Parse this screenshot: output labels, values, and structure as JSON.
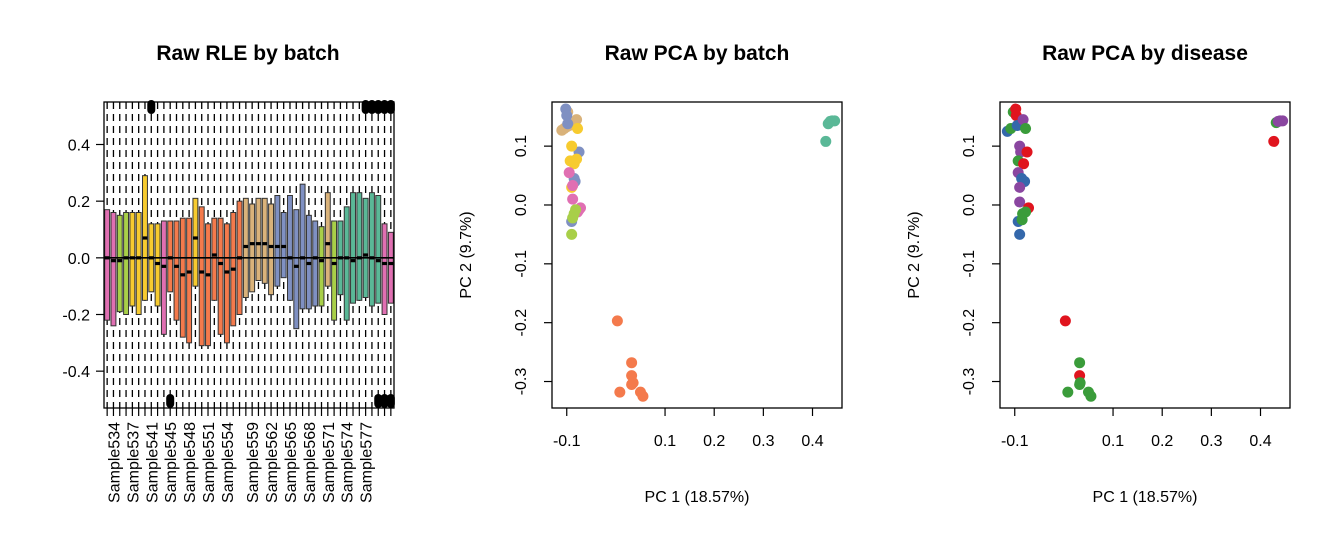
{
  "chart_data": [
    {
      "type": "boxplot",
      "title": "Raw RLE by batch",
      "ylim": [
        -0.53,
        0.55
      ],
      "yticks": [
        -0.4,
        -0.2,
        0.0,
        0.2,
        0.4
      ],
      "ytick_labels": [
        "-0.4",
        "-0.2",
        "0.0",
        "0.2",
        "0.4"
      ],
      "reference_line": 0,
      "xtick_labels": [
        "Sample534",
        "Sample537",
        "Sample541",
        "Sample545",
        "Sample548",
        "Sample551",
        "Sample554",
        "Sample559",
        "Sample562",
        "Sample565",
        "Sample568",
        "Sample571",
        "Sample574",
        "Sample577"
      ],
      "batch_colors": [
        "#e06fb2",
        "#a8cf48",
        "#f7cb2f",
        "#f47a4c",
        "#d9b27a",
        "#7f90c2",
        "#5ab897"
      ],
      "boxes": [
        {
          "batch": 0,
          "q1": -0.22,
          "median": 0.0,
          "q3": 0.17,
          "out_hi": false,
          "out_lo": false
        },
        {
          "batch": 0,
          "q1": -0.24,
          "median": -0.01,
          "q3": 0.16,
          "out_hi": false,
          "out_lo": false
        },
        {
          "batch": 1,
          "q1": -0.19,
          "median": -0.01,
          "q3": 0.15,
          "out_hi": false,
          "out_lo": false
        },
        {
          "batch": 1,
          "q1": -0.2,
          "median": 0.0,
          "q3": 0.16,
          "out_hi": false,
          "out_lo": false
        },
        {
          "batch": 2,
          "q1": -0.17,
          "median": 0.0,
          "q3": 0.16,
          "out_hi": false,
          "out_lo": false
        },
        {
          "batch": 2,
          "q1": -0.2,
          "median": 0.0,
          "q3": 0.16,
          "out_hi": false,
          "out_lo": false
        },
        {
          "batch": 2,
          "q1": -0.15,
          "median": 0.07,
          "q3": 0.29,
          "out_hi": false,
          "out_lo": false
        },
        {
          "batch": 2,
          "q1": -0.12,
          "median": 0.0,
          "q3": 0.12,
          "out_hi": true,
          "out_lo": false
        },
        {
          "batch": 2,
          "q1": -0.17,
          "median": -0.02,
          "q3": 0.12,
          "out_hi": false,
          "out_lo": false
        },
        {
          "batch": 0,
          "q1": -0.27,
          "median": -0.03,
          "q3": 0.13,
          "out_hi": false,
          "out_lo": false
        },
        {
          "batch": 3,
          "q1": -0.12,
          "median": 0.0,
          "q3": 0.13,
          "out_hi": false,
          "out_lo": true
        },
        {
          "batch": 3,
          "q1": -0.22,
          "median": -0.03,
          "q3": 0.13,
          "out_hi": false,
          "out_lo": false
        },
        {
          "batch": 3,
          "q1": -0.28,
          "median": -0.06,
          "q3": 0.14,
          "out_hi": false,
          "out_lo": false
        },
        {
          "batch": 3,
          "q1": -0.3,
          "median": -0.05,
          "q3": 0.14,
          "out_hi": false,
          "out_lo": false
        },
        {
          "batch": 2,
          "q1": -0.1,
          "median": 0.07,
          "q3": 0.21,
          "out_hi": false,
          "out_lo": false
        },
        {
          "batch": 3,
          "q1": -0.31,
          "median": -0.05,
          "q3": 0.18,
          "out_hi": false,
          "out_lo": false
        },
        {
          "batch": 3,
          "q1": -0.31,
          "median": -0.06,
          "q3": 0.12,
          "out_hi": false,
          "out_lo": false
        },
        {
          "batch": 3,
          "q1": -0.15,
          "median": 0.01,
          "q3": 0.14,
          "out_hi": false,
          "out_lo": false
        },
        {
          "batch": 3,
          "q1": -0.27,
          "median": -0.02,
          "q3": 0.14,
          "out_hi": false,
          "out_lo": false
        },
        {
          "batch": 3,
          "q1": -0.3,
          "median": -0.05,
          "q3": 0.12,
          "out_hi": false,
          "out_lo": false
        },
        {
          "batch": 3,
          "q1": -0.24,
          "median": -0.04,
          "q3": 0.16,
          "out_hi": false,
          "out_lo": false
        },
        {
          "batch": 3,
          "q1": -0.2,
          "median": 0.0,
          "q3": 0.2,
          "out_hi": false,
          "out_lo": false
        },
        {
          "batch": 4,
          "q1": -0.14,
          "median": 0.04,
          "q3": 0.21,
          "out_hi": false,
          "out_lo": false
        },
        {
          "batch": 4,
          "q1": -0.12,
          "median": 0.05,
          "q3": 0.19,
          "out_hi": false,
          "out_lo": false
        },
        {
          "batch": 4,
          "q1": -0.08,
          "median": 0.05,
          "q3": 0.21,
          "out_hi": false,
          "out_lo": false
        },
        {
          "batch": 4,
          "q1": -0.09,
          "median": 0.05,
          "q3": 0.21,
          "out_hi": false,
          "out_lo": false
        },
        {
          "batch": 4,
          "q1": -0.13,
          "median": 0.04,
          "q3": 0.19,
          "out_hi": false,
          "out_lo": false
        },
        {
          "batch": 5,
          "q1": -0.1,
          "median": 0.04,
          "q3": 0.22,
          "out_hi": false,
          "out_lo": false
        },
        {
          "batch": 5,
          "q1": -0.07,
          "median": 0.04,
          "q3": 0.16,
          "out_hi": false,
          "out_lo": false
        },
        {
          "batch": 5,
          "q1": -0.15,
          "median": 0.0,
          "q3": 0.22,
          "out_hi": false,
          "out_lo": false
        },
        {
          "batch": 5,
          "q1": -0.25,
          "median": -0.03,
          "q3": 0.17,
          "out_hi": false,
          "out_lo": false
        },
        {
          "batch": 5,
          "q1": -0.18,
          "median": 0.0,
          "q3": 0.26,
          "out_hi": false,
          "out_lo": false
        },
        {
          "batch": 5,
          "q1": -0.18,
          "median": -0.02,
          "q3": 0.15,
          "out_hi": false,
          "out_lo": false
        },
        {
          "batch": 5,
          "q1": -0.17,
          "median": 0.0,
          "q3": 0.13,
          "out_hi": false,
          "out_lo": false
        },
        {
          "batch": 1,
          "q1": -0.17,
          "median": -0.01,
          "q3": 0.11,
          "out_hi": false,
          "out_lo": false
        },
        {
          "batch": 4,
          "q1": -0.1,
          "median": 0.05,
          "q3": 0.23,
          "out_hi": false,
          "out_lo": false
        },
        {
          "batch": 1,
          "q1": -0.22,
          "median": -0.02,
          "q3": 0.13,
          "out_hi": false,
          "out_lo": false
        },
        {
          "batch": 6,
          "q1": -0.13,
          "median": 0.0,
          "q3": 0.13,
          "out_hi": false,
          "out_lo": false
        },
        {
          "batch": 6,
          "q1": -0.22,
          "median": 0.0,
          "q3": 0.18,
          "out_hi": false,
          "out_lo": false
        },
        {
          "batch": 6,
          "q1": -0.16,
          "median": -0.01,
          "q3": 0.23,
          "out_hi": false,
          "out_lo": false
        },
        {
          "batch": 6,
          "q1": -0.15,
          "median": 0.0,
          "q3": 0.23,
          "out_hi": false,
          "out_lo": false
        },
        {
          "batch": 6,
          "q1": -0.14,
          "median": 0.01,
          "q3": 0.21,
          "out_hi": true,
          "out_lo": false
        },
        {
          "batch": 6,
          "q1": -0.17,
          "median": 0.0,
          "q3": 0.23,
          "out_hi": true,
          "out_lo": false
        },
        {
          "batch": 6,
          "q1": -0.16,
          "median": -0.01,
          "q3": 0.22,
          "out_hi": true,
          "out_lo": true
        },
        {
          "batch": 0,
          "q1": -0.2,
          "median": -0.02,
          "q3": 0.12,
          "out_hi": true,
          "out_lo": true
        },
        {
          "batch": 0,
          "q1": -0.16,
          "median": -0.02,
          "q3": 0.09,
          "out_hi": true,
          "out_lo": true
        }
      ]
    },
    {
      "type": "scatter",
      "title": "Raw PCA by batch",
      "xlabel": "PC 1 (18.57%)",
      "ylabel": "PC 2 (9.7%)",
      "xlim": [
        -0.13,
        0.46
      ],
      "ylim": [
        -0.345,
        0.175
      ],
      "xticks": [
        -0.1,
        0.1,
        0.2,
        0.3,
        0.4
      ],
      "xtick_labels": [
        "-0.1",
        "0.1",
        "0.2",
        "0.3",
        "0.4"
      ],
      "yticks": [
        0.1,
        0.0,
        -0.1,
        -0.2,
        -0.3
      ],
      "ytick_labels": [
        "0.1",
        "0.0",
        "-0.1",
        "-0.2",
        "-0.3"
      ],
      "colors": [
        "#d9b27a",
        "#7f90c2",
        "#f7cb2f",
        "#e06fb2",
        "#a8cf48",
        "#f47a4c",
        "#5ab897"
      ],
      "points": [
        [
          -0.11,
          0.127,
          0
        ],
        [
          -0.105,
          0.13,
          0
        ],
        [
          -0.1,
          0.133,
          0
        ],
        [
          -0.095,
          0.135,
          0
        ],
        [
          -0.098,
          0.158,
          0
        ],
        [
          -0.08,
          0.145,
          0
        ],
        [
          -0.102,
          0.163,
          1
        ],
        [
          -0.1,
          0.152,
          1
        ],
        [
          -0.098,
          0.138,
          1
        ],
        [
          -0.075,
          0.09,
          1
        ],
        [
          -0.085,
          0.045,
          1
        ],
        [
          -0.083,
          0.04,
          1
        ],
        [
          -0.09,
          -0.028,
          1
        ],
        [
          -0.078,
          0.13,
          2
        ],
        [
          -0.09,
          0.1,
          2
        ],
        [
          -0.093,
          0.075,
          2
        ],
        [
          -0.085,
          0.07,
          2
        ],
        [
          -0.08,
          0.078,
          2
        ],
        [
          -0.09,
          0.03,
          2
        ],
        [
          -0.095,
          0.055,
          3
        ],
        [
          -0.088,
          0.033,
          3
        ],
        [
          -0.088,
          0.01,
          3
        ],
        [
          -0.072,
          -0.005,
          3
        ],
        [
          -0.075,
          -0.008,
          3
        ],
        [
          -0.078,
          -0.012,
          3
        ],
        [
          -0.082,
          -0.008,
          4
        ],
        [
          -0.085,
          -0.015,
          4
        ],
        [
          -0.09,
          -0.05,
          4
        ],
        [
          -0.088,
          -0.022,
          4
        ],
        [
          0.003,
          -0.197,
          5
        ],
        [
          0.008,
          -0.318,
          5
        ],
        [
          0.032,
          -0.268,
          5
        ],
        [
          0.032,
          -0.29,
          5
        ],
        [
          0.035,
          -0.302,
          5
        ],
        [
          0.032,
          -0.305,
          5
        ],
        [
          0.05,
          -0.318,
          5
        ],
        [
          0.055,
          -0.325,
          5
        ],
        [
          0.427,
          0.108,
          6
        ],
        [
          0.432,
          0.138,
          6
        ],
        [
          0.436,
          0.142,
          6
        ],
        [
          0.44,
          0.143,
          6
        ],
        [
          0.445,
          0.143,
          6
        ]
      ]
    },
    {
      "type": "scatter",
      "title": "Raw PCA by disease",
      "xlabel": "PC 1 (18.57%)",
      "ylabel": "PC 2 (9.7%)",
      "xlim": [
        -0.13,
        0.46
      ],
      "ylim": [
        -0.345,
        0.175
      ],
      "xticks": [
        -0.1,
        0.1,
        0.2,
        0.3,
        0.4
      ],
      "xtick_labels": [
        "-0.1",
        "0.1",
        "0.2",
        "0.3",
        "0.4"
      ],
      "yticks": [
        0.1,
        0.0,
        -0.1,
        -0.2,
        -0.3
      ],
      "ytick_labels": [
        "0.1",
        "0.0",
        "-0.1",
        "-0.2",
        "-0.3"
      ],
      "colors": [
        "#e0141e",
        "#3468ab",
        "#3a9c3a",
        "#8a46a0"
      ],
      "points": [
        [
          -0.115,
          0.125,
          1
        ],
        [
          -0.108,
          0.13,
          2
        ],
        [
          -0.103,
          0.158,
          2
        ],
        [
          -0.098,
          0.163,
          0
        ],
        [
          -0.097,
          0.152,
          0
        ],
        [
          -0.095,
          0.135,
          1
        ],
        [
          -0.083,
          0.145,
          3
        ],
        [
          -0.078,
          0.13,
          2
        ],
        [
          -0.09,
          0.1,
          3
        ],
        [
          -0.088,
          0.09,
          3
        ],
        [
          -0.075,
          0.09,
          0
        ],
        [
          -0.093,
          0.075,
          2
        ],
        [
          -0.082,
          0.07,
          0
        ],
        [
          -0.093,
          0.055,
          3
        ],
        [
          -0.086,
          0.045,
          1
        ],
        [
          -0.08,
          0.04,
          1
        ],
        [
          -0.09,
          0.03,
          3
        ],
        [
          -0.09,
          0.005,
          3
        ],
        [
          -0.072,
          -0.005,
          0
        ],
        [
          -0.078,
          -0.012,
          2
        ],
        [
          -0.084,
          -0.015,
          2
        ],
        [
          -0.093,
          -0.028,
          1
        ],
        [
          -0.085,
          -0.025,
          2
        ],
        [
          -0.09,
          -0.05,
          1
        ],
        [
          0.003,
          -0.197,
          0
        ],
        [
          0.008,
          -0.318,
          2
        ],
        [
          0.032,
          -0.268,
          2
        ],
        [
          0.032,
          -0.29,
          0
        ],
        [
          0.033,
          -0.302,
          2
        ],
        [
          0.032,
          -0.305,
          2
        ],
        [
          0.05,
          -0.318,
          2
        ],
        [
          0.055,
          -0.325,
          2
        ],
        [
          0.427,
          0.108,
          0
        ],
        [
          0.432,
          0.14,
          2
        ],
        [
          0.436,
          0.142,
          3
        ],
        [
          0.44,
          0.143,
          3
        ],
        [
          0.445,
          0.143,
          3
        ]
      ]
    }
  ]
}
